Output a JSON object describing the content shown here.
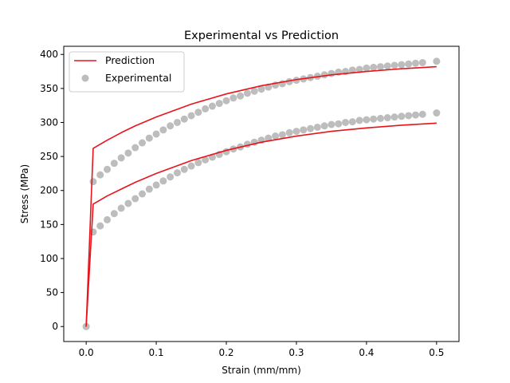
{
  "chart_data": {
    "type": "scatter",
    "title": "Experimental vs Prediction",
    "xlabel": "Strain (mm/mm)",
    "ylabel": "Stress (MPa)",
    "xlim": [
      -0.032,
      0.532
    ],
    "ylim": [
      -22,
      412
    ],
    "xticks": [
      0.0,
      0.1,
      0.2,
      0.3,
      0.4,
      0.5
    ],
    "xtick_labels": [
      "0.0",
      "0.1",
      "0.2",
      "0.3",
      "0.4",
      "0.5"
    ],
    "yticks": [
      0,
      50,
      100,
      150,
      200,
      250,
      300,
      350,
      400
    ],
    "ytick_labels": [
      "0",
      "50",
      "100",
      "150",
      "200",
      "250",
      "300",
      "350",
      "400"
    ],
    "grid": false,
    "legend_position": "top-left",
    "legend": [
      "Prediction",
      "Experimental"
    ],
    "colors": {
      "prediction": "#e8141c",
      "experimental": "#bdbdbd"
    },
    "series": [
      {
        "name": "Prediction",
        "kind": "line",
        "curves": [
          {
            "x": [
              0.0,
              0.01,
              0.02,
              0.03,
              0.05,
              0.07,
              0.1,
              0.15,
              0.2,
              0.25,
              0.3,
              0.35,
              0.4,
              0.45,
              0.5
            ],
            "y": [
              0,
              262,
              268,
              274,
              285,
              295,
              308,
              327,
              342,
              354,
              363,
              370,
              375,
              379,
              382
            ]
          },
          {
            "x": [
              0.0,
              0.01,
              0.02,
              0.03,
              0.05,
              0.07,
              0.1,
              0.15,
              0.2,
              0.25,
              0.3,
              0.35,
              0.4,
              0.45,
              0.5
            ],
            "y": [
              0,
              180,
              186,
              192,
              202,
              212,
              225,
              244,
              259,
              271,
              280,
              287,
              292,
              296,
              299
            ]
          }
        ]
      },
      {
        "name": "Experimental",
        "kind": "scatter",
        "points": [
          {
            "x": [
              0.0,
              0.01,
              0.02,
              0.03,
              0.04,
              0.05,
              0.06,
              0.07,
              0.08,
              0.09,
              0.1,
              0.11,
              0.12,
              0.13,
              0.14,
              0.15,
              0.16,
              0.17,
              0.18,
              0.19,
              0.2,
              0.21,
              0.22,
              0.23,
              0.24,
              0.25,
              0.26,
              0.27,
              0.28,
              0.29,
              0.3,
              0.31,
              0.32,
              0.33,
              0.34,
              0.35,
              0.36,
              0.37,
              0.38,
              0.39,
              0.4,
              0.41,
              0.42,
              0.43,
              0.44,
              0.45,
              0.46,
              0.47,
              0.48,
              0.5
            ],
            "y": [
              0,
              213,
              223,
              231,
              240,
              248,
              255,
              263,
              270,
              277,
              283,
              289,
              295,
              300,
              305,
              310,
              315,
              320,
              324,
              328,
              332,
              336,
              339,
              343,
              346,
              349,
              352,
              355,
              357,
              360,
              362,
              364,
              366,
              368,
              370,
              372,
              374,
              375,
              377,
              378,
              380,
              381,
              382,
              383,
              384,
              385,
              386,
              387,
              388,
              390
            ]
          },
          {
            "x": [
              0.0,
              0.01,
              0.02,
              0.03,
              0.04,
              0.05,
              0.06,
              0.07,
              0.08,
              0.09,
              0.1,
              0.11,
              0.12,
              0.13,
              0.14,
              0.15,
              0.16,
              0.17,
              0.18,
              0.19,
              0.2,
              0.21,
              0.22,
              0.23,
              0.24,
              0.25,
              0.26,
              0.27,
              0.28,
              0.29,
              0.3,
              0.31,
              0.32,
              0.33,
              0.34,
              0.35,
              0.36,
              0.37,
              0.38,
              0.39,
              0.4,
              0.41,
              0.42,
              0.43,
              0.44,
              0.45,
              0.46,
              0.47,
              0.48,
              0.5
            ],
            "y": [
              0,
              139,
              148,
              157,
              166,
              174,
              181,
              188,
              195,
              202,
              208,
              214,
              220,
              226,
              231,
              236,
              241,
              245,
              249,
              253,
              257,
              261,
              264,
              268,
              271,
              274,
              277,
              280,
              282,
              285,
              287,
              289,
              291,
              293,
              295,
              297,
              298,
              300,
              301,
              303,
              304,
              305,
              306,
              307,
              308,
              309,
              310,
              311,
              312,
              314
            ]
          }
        ]
      }
    ]
  }
}
